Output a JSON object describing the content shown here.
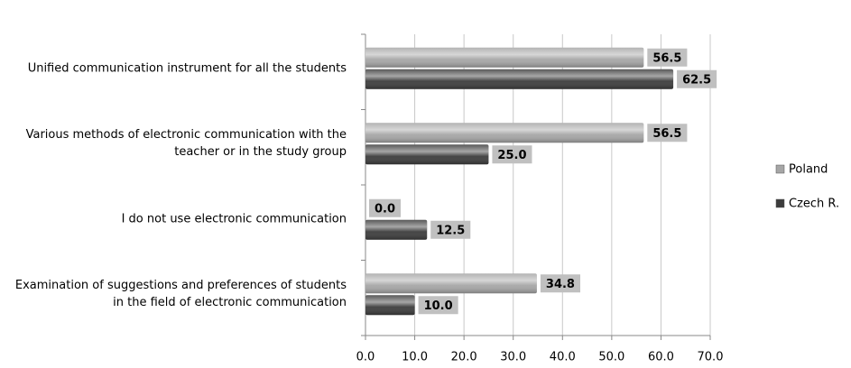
{
  "chart_data": {
    "type": "hbar",
    "categories": [
      "Unified communication  instrument for all the students",
      "Various methods of electronic communication with the teacher or in the study group",
      "I do not use electronic communication",
      "Examination of suggestions and preferences of students in the field of electronic communication"
    ],
    "series": [
      {
        "name": "Poland",
        "color": "#a6a6a6",
        "values": [
          56.5,
          56.5,
          0,
          34.8
        ],
        "value_labels": [
          "56.5",
          "56.5",
          "0.0",
          "34.8"
        ]
      },
      {
        "name": "Czech R.",
        "color": "#3c3c3c",
        "values": [
          62.5,
          25,
          12.5,
          10
        ],
        "value_labels": [
          "62.5",
          "25.0",
          "12.5",
          "10.0"
        ]
      }
    ],
    "xlim": [
      0,
      70
    ],
    "xticks": [
      {
        "value": 0,
        "label": "0.0"
      },
      {
        "value": 10,
        "label": "10.0"
      },
      {
        "value": 20,
        "label": "20.0"
      },
      {
        "value": 30,
        "label": "30.0"
      },
      {
        "value": 40,
        "label": "40.0"
      },
      {
        "value": 50,
        "label": "50.0"
      },
      {
        "value": 60,
        "label": "60.0"
      },
      {
        "value": 70,
        "label": "70.0"
      }
    ],
    "grid": true,
    "legend": "right"
  }
}
